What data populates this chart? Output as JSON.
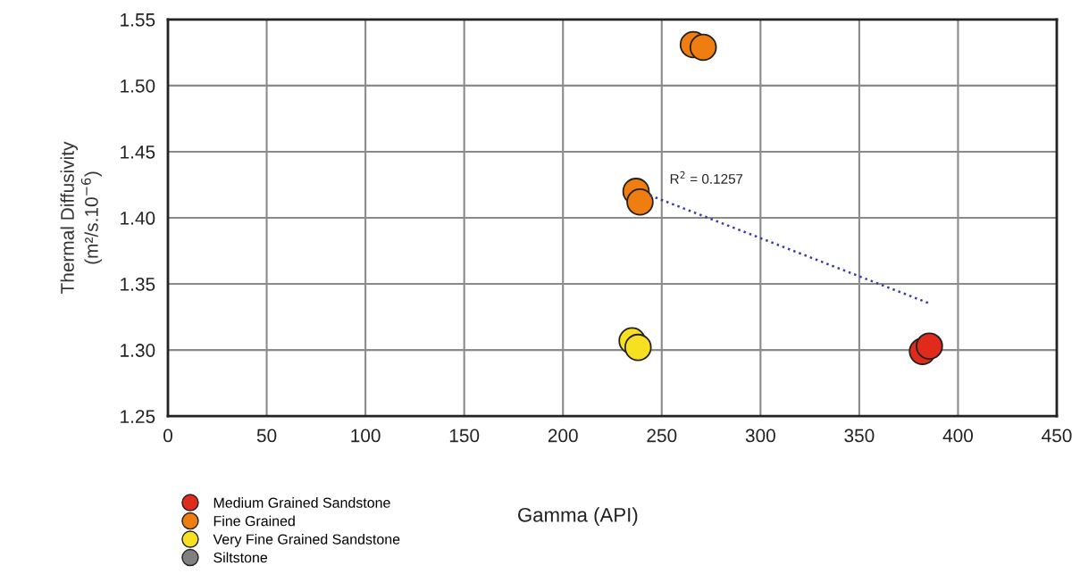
{
  "chart_data": {
    "type": "scatter",
    "xlabel": "Gamma (API)",
    "ylabel": "Thermal Diffusivity\n(m²/s.10$^{−6}$)",
    "xlim": [
      0,
      450
    ],
    "xticks": [
      0,
      50,
      100,
      150,
      200,
      250,
      300,
      350,
      400,
      450
    ],
    "ylim": [
      1.25,
      1.55
    ],
    "yticks": [
      {
        "value": 1.25,
        "label": "1.25"
      },
      {
        "value": 1.3,
        "label": "1.30"
      },
      {
        "value": 1.35,
        "label": "1.35"
      },
      {
        "value": 1.4,
        "label": "1.40"
      },
      {
        "value": 1.45,
        "label": "1.45"
      },
      {
        "value": 1.5,
        "label": "1.50"
      },
      {
        "value": 1.55,
        "label": "1.55"
      }
    ],
    "grid": true,
    "legend": "bottom left",
    "marker": "circle",
    "annotations": [
      "R$^{2}$ = 0.1257"
    ],
    "series": [
      {
        "name": "Medium Grained Sandstone",
        "color": "#e02a1c",
        "x": [
          382,
          385.5
        ],
        "values": [
          1.299,
          1.303
        ]
      },
      {
        "name": "Fine Grained",
        "color": "#ef7d0f",
        "x": [
          266,
          271,
          237,
          239
        ],
        "values": [
          1.531,
          1.529,
          1.42,
          1.412
        ]
      },
      {
        "name": "Very Fine Grained Sandstone",
        "color": "#f6e021",
        "x": [
          235,
          238
        ],
        "values": [
          1.307,
          1.302
        ]
      },
      {
        "name": "Siltstone",
        "color": "#808080"
      },
      {
        "type": "line",
        "marker": "none",
        "line_style": "dotted",
        "color": "#3a3aa8",
        "x": [
          244,
          386
        ],
        "values": [
          1.417,
          1.335
        ]
      }
    ]
  }
}
